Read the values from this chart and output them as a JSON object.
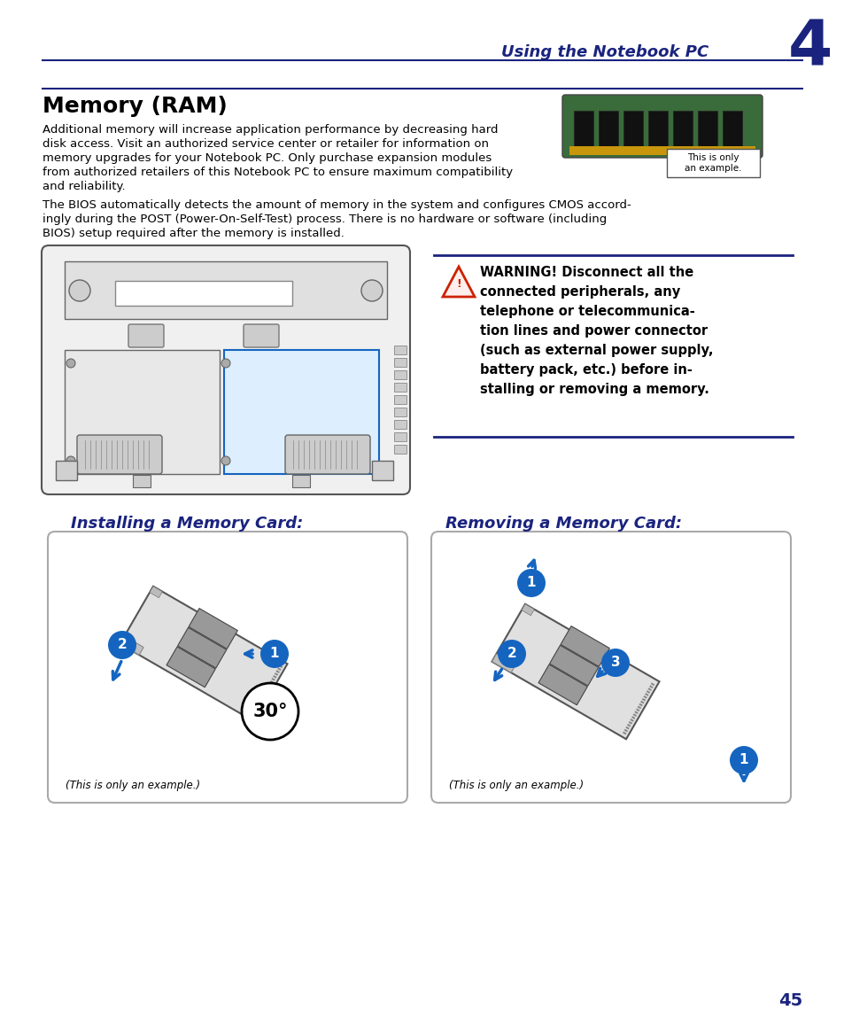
{
  "page_bg": "#ffffff",
  "header_text": "Using the Notebook PC",
  "header_number": "4",
  "title": "Memory (RAM)",
  "body1_lines": [
    "Additional memory will increase application performance by decreasing hard",
    "disk access. Visit an authorized service center or retailer for information on",
    "memory upgrades for your Notebook PC. Only purchase expansion modules",
    "from authorized retailers of this Notebook PC to ensure maximum compatibility",
    "and reliability."
  ],
  "body2_lines": [
    "The BIOS automatically detects the amount of memory in the system and configures CMOS accord-",
    "ingly during the POST (Power-On-Self-Test) process. There is no hardware or software (including",
    "BIOS) setup required after the memory is installed."
  ],
  "warning_line1": "WARNING! Disconnect all the",
  "warning_lines": [
    "WARNING! Disconnect all the",
    "connected peripherals, any",
    "telephone or telecommunica-",
    "tion lines and power connector",
    "(such as external power supply,",
    "battery pack, etc.) before in-",
    "stalling or removing a memory."
  ],
  "install_title": "Installing a Memory Card:",
  "remove_title": "Removing a Memory Card:",
  "example_text": "(This is only an example.)",
  "this_is_only": "This is only\nan example.",
  "page_number": "45",
  "blue_color": "#1565C0",
  "dark_blue": "#1a237e",
  "line_color": "#1a237e",
  "text_color": "#000000",
  "body_fontsize": 9.5,
  "warn_fontsize": 10.5
}
